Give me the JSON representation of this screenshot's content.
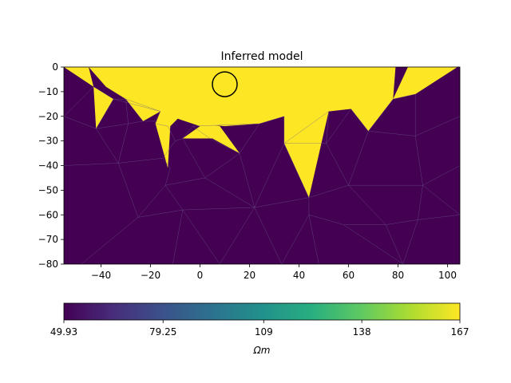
{
  "chart_data": {
    "type": "heatmap",
    "title": "Inferred model",
    "xlabel": "",
    "ylabel": "",
    "xlim": [
      -55,
      105
    ],
    "ylim": [
      -80,
      0
    ],
    "xticks": [
      "−40",
      "−20",
      "0",
      "20",
      "40",
      "60",
      "80",
      "100"
    ],
    "xtick_values": [
      -40,
      -20,
      0,
      20,
      40,
      60,
      80,
      100
    ],
    "yticks": [
      "0",
      "−10",
      "−20",
      "−30",
      "−40",
      "−50",
      "−60",
      "−70",
      "−80"
    ],
    "ytick_values": [
      0,
      -10,
      -20,
      -30,
      -40,
      -50,
      -60,
      -70,
      -80
    ],
    "grid": false,
    "colormap": "viridis",
    "background_value": 49.93,
    "colorbar": {
      "label": "Ωm",
      "min": 49.93,
      "max": 167,
      "ticks": [
        "49.93",
        "79.25",
        "109",
        "138",
        "167"
      ],
      "tick_values": [
        49.93,
        79.25,
        109,
        138,
        167
      ],
      "orientation": "horizontal"
    },
    "high_zones_value": 167,
    "high_zones": [
      {
        "points": [
          [
            -45,
            0
          ],
          [
            104,
            0
          ],
          [
            87,
            -11
          ],
          [
            78,
            -13
          ],
          [
            68,
            -26
          ],
          [
            61,
            -17
          ],
          [
            52,
            -18
          ],
          [
            44,
            -53
          ],
          [
            34,
            -31
          ],
          [
            34,
            -20
          ],
          [
            24,
            -23
          ],
          [
            10,
            -24
          ],
          [
            -2,
            -23
          ],
          [
            -9,
            -21
          ],
          [
            -12,
            -24
          ],
          [
            -13,
            -41
          ],
          [
            -18,
            -23
          ],
          [
            -16,
            -18
          ],
          [
            -23,
            -22
          ],
          [
            -30,
            -13
          ],
          [
            -38,
            -8
          ]
        ]
      },
      {
        "points": [
          [
            -55,
            0
          ],
          [
            -45,
            0
          ],
          [
            -43,
            -8
          ]
        ]
      },
      {
        "points": [
          [
            -43,
            -8
          ],
          [
            -35,
            -13
          ],
          [
            -42,
            -25
          ]
        ]
      },
      {
        "points": [
          [
            -9,
            -21
          ],
          [
            0,
            -24
          ],
          [
            -7,
            -29
          ],
          [
            5,
            -29
          ],
          [
            16,
            -35
          ],
          [
            8,
            -24
          ]
        ]
      }
    ],
    "low_zones": [
      {
        "points": [
          [
            79,
            0
          ],
          [
            84,
            0
          ],
          [
            78,
            -13
          ]
        ]
      },
      {
        "points": [
          [
            -7,
            -23
          ],
          [
            -3,
            -24
          ],
          [
            -8,
            -27
          ]
        ]
      }
    ],
    "mesh_nodes": [
      [
        -55,
        -20
      ],
      [
        -43,
        -8
      ],
      [
        -42,
        -25
      ],
      [
        -35,
        -13
      ],
      [
        -29,
        -23
      ],
      [
        -30,
        -13
      ],
      [
        -23,
        -22
      ],
      [
        -18,
        -22
      ],
      [
        -13,
        -24
      ],
      [
        -18,
        -23
      ],
      [
        -16,
        -18
      ],
      [
        -12,
        -41
      ],
      [
        -15,
        -37
      ],
      [
        -10,
        -30
      ],
      [
        -7,
        -29
      ],
      [
        -3,
        -24
      ],
      [
        4,
        -29
      ],
      [
        2,
        -45
      ],
      [
        16,
        -35
      ],
      [
        22,
        -57
      ],
      [
        24,
        -23
      ],
      [
        34,
        -20
      ],
      [
        34,
        -31
      ],
      [
        44,
        -53
      ],
      [
        52,
        -18
      ],
      [
        51,
        -31
      ],
      [
        61,
        -17
      ],
      [
        68,
        -26
      ],
      [
        60,
        -48
      ],
      [
        78,
        -13
      ],
      [
        87,
        -11
      ],
      [
        87,
        -28
      ],
      [
        105,
        -20
      ],
      [
        105,
        -40
      ],
      [
        90,
        -48
      ],
      [
        105,
        -60
      ],
      [
        88,
        -62
      ],
      [
        75,
        -64
      ],
      [
        58,
        -64
      ],
      [
        44,
        -60
      ],
      [
        33,
        -80
      ],
      [
        -55,
        -40
      ],
      [
        -33,
        -39
      ],
      [
        -14,
        -48
      ],
      [
        -11,
        -80
      ],
      [
        -7,
        -58
      ],
      [
        -25,
        -61
      ],
      [
        8,
        -80
      ],
      [
        48,
        -80
      ],
      [
        82,
        -80
      ],
      [
        -48,
        -80
      ]
    ],
    "mesh_edges": [
      [
        0,
        1
      ],
      [
        0,
        2
      ],
      [
        1,
        3
      ],
      [
        2,
        3
      ],
      [
        2,
        4
      ],
      [
        3,
        5
      ],
      [
        4,
        5
      ],
      [
        4,
        6
      ],
      [
        5,
        6
      ],
      [
        6,
        7
      ],
      [
        7,
        9
      ],
      [
        9,
        8
      ],
      [
        8,
        13
      ],
      [
        13,
        14
      ],
      [
        14,
        15
      ],
      [
        15,
        16
      ],
      [
        16,
        18
      ],
      [
        18,
        20
      ],
      [
        20,
        21
      ],
      [
        21,
        22
      ],
      [
        22,
        24
      ],
      [
        24,
        25
      ],
      [
        25,
        26
      ],
      [
        26,
        27
      ],
      [
        27,
        28
      ],
      [
        27,
        29
      ],
      [
        29,
        30
      ],
      [
        30,
        31
      ],
      [
        31,
        32
      ],
      [
        31,
        27
      ],
      [
        31,
        34
      ],
      [
        32,
        33
      ],
      [
        33,
        34
      ],
      [
        34,
        35
      ],
      [
        35,
        36
      ],
      [
        36,
        37
      ],
      [
        37,
        38
      ],
      [
        38,
        39
      ],
      [
        39,
        23
      ],
      [
        23,
        28
      ],
      [
        28,
        34
      ],
      [
        28,
        37
      ],
      [
        23,
        19
      ],
      [
        19,
        17
      ],
      [
        17,
        14
      ],
      [
        17,
        18
      ],
      [
        18,
        19
      ],
      [
        19,
        22
      ],
      [
        22,
        23
      ],
      [
        17,
        43
      ],
      [
        43,
        45
      ],
      [
        45,
        19
      ],
      [
        45,
        46
      ],
      [
        46,
        42
      ],
      [
        42,
        41
      ],
      [
        41,
        0
      ],
      [
        42,
        4
      ],
      [
        42,
        2
      ],
      [
        42,
        12
      ],
      [
        12,
        11
      ],
      [
        11,
        43
      ],
      [
        43,
        46
      ],
      [
        46,
        50
      ],
      [
        45,
        44
      ],
      [
        45,
        47
      ],
      [
        19,
        47
      ],
      [
        19,
        40
      ],
      [
        39,
        40
      ],
      [
        39,
        48
      ],
      [
        38,
        49
      ],
      [
        37,
        49
      ],
      [
        36,
        49
      ],
      [
        12,
        13
      ],
      [
        15,
        20
      ],
      [
        10,
        7
      ],
      [
        10,
        5
      ],
      [
        3,
        10
      ],
      [
        28,
        25
      ],
      [
        25,
        22
      ],
      [
        36,
        34
      ]
    ],
    "circle": {
      "x": 10,
      "y": -7,
      "r": 5
    }
  }
}
